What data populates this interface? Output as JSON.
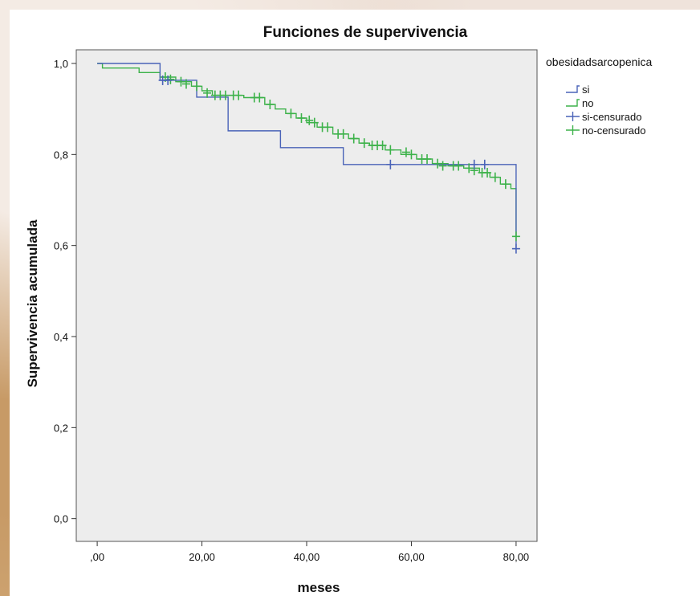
{
  "chart_data": {
    "type": "line",
    "subtype": "kaplan-meier step",
    "title": "Funciones de supervivencia",
    "xlabel": "meses",
    "ylabel": "Supervivencia acumulada",
    "xlim": [
      -4,
      84
    ],
    "ylim": [
      -0.05,
      1.03
    ],
    "x_ticks": [
      0,
      20,
      40,
      60,
      80
    ],
    "x_tick_labels": [
      ",00",
      "20,00",
      "40,00",
      "60,00",
      "80,00"
    ],
    "y_ticks": [
      0,
      0.2,
      0.4,
      0.6,
      0.8,
      1.0
    ],
    "y_tick_labels": [
      "0,0",
      "0,2",
      "0,4",
      "0,6",
      "0,8",
      "1,0"
    ],
    "grid": false,
    "legend_placement": "right",
    "legend_title": "obesidadsarcopenica",
    "legend_entries": [
      "si",
      "no",
      "si-censurado",
      "no-censurado"
    ],
    "series": [
      {
        "name": "si",
        "color": "#4a63b8",
        "steps": [
          [
            0,
            1.0
          ],
          [
            12,
            0.963
          ],
          [
            19,
            0.926
          ],
          [
            25,
            0.852
          ],
          [
            35,
            0.815
          ],
          [
            47,
            0.778
          ],
          [
            80,
            0.593
          ]
        ],
        "censored": [
          [
            12.5,
            0.963
          ],
          [
            13.5,
            0.963
          ],
          [
            56,
            0.778
          ],
          [
            72,
            0.778
          ],
          [
            74,
            0.778
          ],
          [
            80,
            0.593
          ]
        ]
      },
      {
        "name": "no",
        "color": "#3db24a",
        "steps": [
          [
            0,
            1.0
          ],
          [
            1,
            0.99
          ],
          [
            8,
            0.98
          ],
          [
            12,
            0.97
          ],
          [
            15,
            0.96
          ],
          [
            18,
            0.95
          ],
          [
            20,
            0.94
          ],
          [
            22,
            0.93
          ],
          [
            28,
            0.925
          ],
          [
            32,
            0.91
          ],
          [
            34,
            0.9
          ],
          [
            36,
            0.89
          ],
          [
            38,
            0.88
          ],
          [
            40,
            0.87
          ],
          [
            42,
            0.86
          ],
          [
            45,
            0.845
          ],
          [
            48,
            0.835
          ],
          [
            50,
            0.825
          ],
          [
            52,
            0.82
          ],
          [
            55,
            0.81
          ],
          [
            58,
            0.8
          ],
          [
            61,
            0.79
          ],
          [
            64,
            0.78
          ],
          [
            67,
            0.775
          ],
          [
            70,
            0.77
          ],
          [
            73,
            0.76
          ],
          [
            75,
            0.75
          ],
          [
            77,
            0.735
          ],
          [
            79,
            0.725
          ],
          [
            80,
            0.62
          ]
        ],
        "censored": [
          [
            13,
            0.97
          ],
          [
            14,
            0.965
          ],
          [
            16,
            0.96
          ],
          [
            17,
            0.955
          ],
          [
            19,
            0.95
          ],
          [
            21,
            0.935
          ],
          [
            22.5,
            0.93
          ],
          [
            23.5,
            0.93
          ],
          [
            24.5,
            0.93
          ],
          [
            26,
            0.93
          ],
          [
            27,
            0.93
          ],
          [
            30,
            0.925
          ],
          [
            31,
            0.925
          ],
          [
            33,
            0.91
          ],
          [
            37,
            0.89
          ],
          [
            39,
            0.88
          ],
          [
            40.5,
            0.875
          ],
          [
            41.5,
            0.87
          ],
          [
            43,
            0.86
          ],
          [
            44,
            0.86
          ],
          [
            46,
            0.845
          ],
          [
            47,
            0.845
          ],
          [
            49,
            0.835
          ],
          [
            51,
            0.825
          ],
          [
            52.5,
            0.82
          ],
          [
            53.5,
            0.82
          ],
          [
            54.5,
            0.82
          ],
          [
            56,
            0.81
          ],
          [
            59,
            0.805
          ],
          [
            60,
            0.8
          ],
          [
            62,
            0.79
          ],
          [
            63,
            0.79
          ],
          [
            65,
            0.78
          ],
          [
            66,
            0.775
          ],
          [
            68,
            0.775
          ],
          [
            69,
            0.775
          ],
          [
            71,
            0.77
          ],
          [
            72,
            0.765
          ],
          [
            73.5,
            0.76
          ],
          [
            74.5,
            0.76
          ],
          [
            76,
            0.75
          ],
          [
            78,
            0.735
          ],
          [
            80,
            0.62
          ]
        ]
      }
    ]
  }
}
